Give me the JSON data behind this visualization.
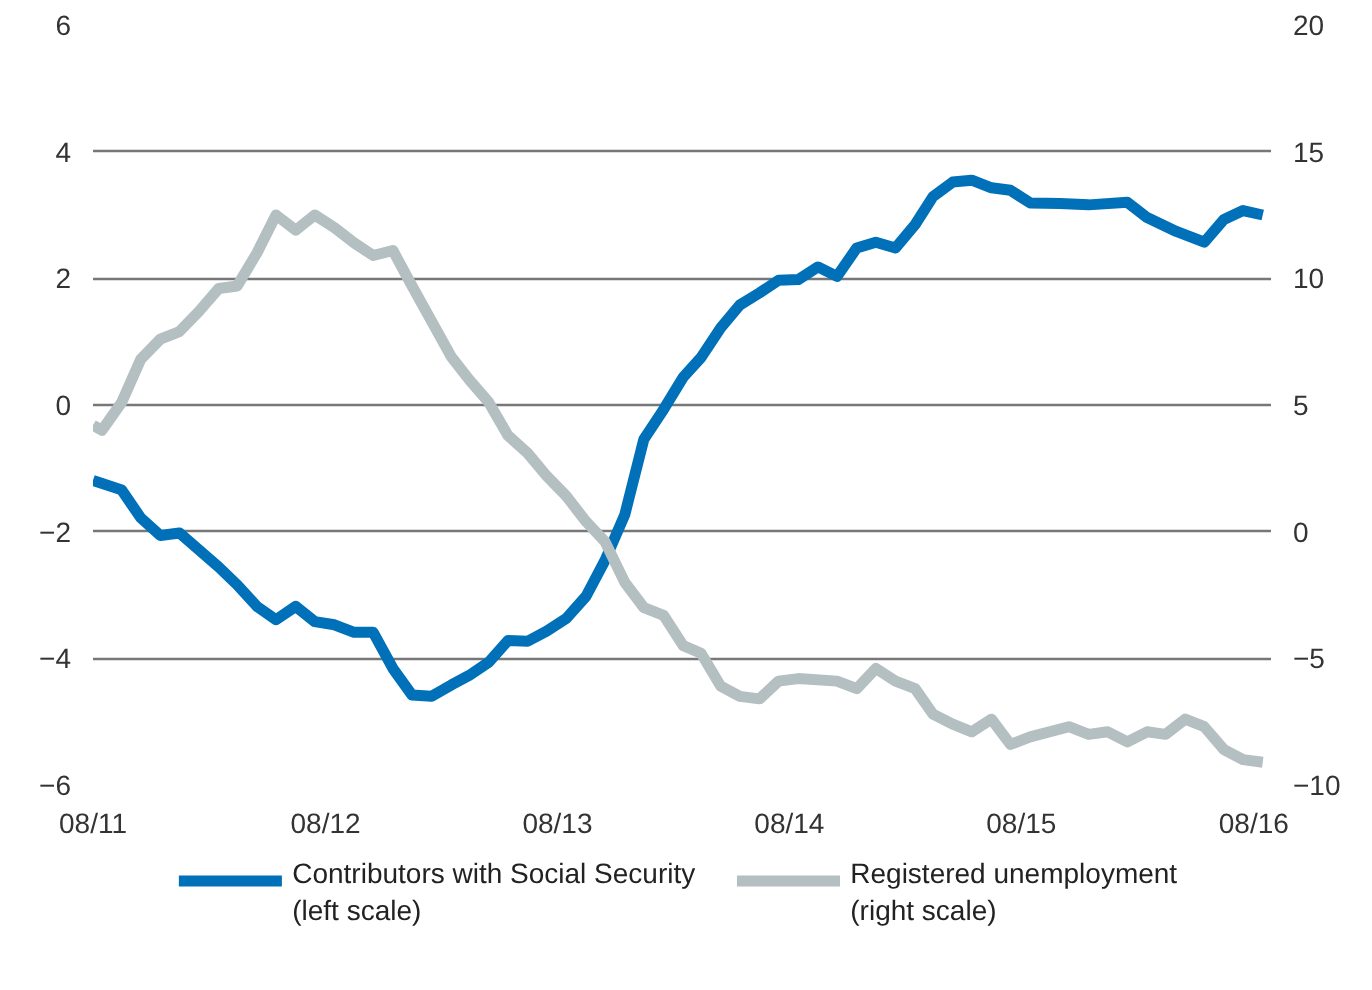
{
  "chart_data": {
    "type": "line",
    "legend": "bottom",
    "grid": "y",
    "line_style": "solid",
    "marker": "none",
    "xlim": [
      "2011-08-01",
      "2016-08-28"
    ],
    "xticks": [
      {
        "value": "2011-08-01",
        "label": "08/11"
      },
      {
        "value": "2012-08-01",
        "label": "08/12"
      },
      {
        "value": "2013-08-01",
        "label": "08/13"
      },
      {
        "value": "2014-08-01",
        "label": "08/14"
      },
      {
        "value": "2015-08-01",
        "label": "08/15"
      },
      {
        "value": "2016-08-01",
        "label": "08/16"
      }
    ],
    "ylim": [
      -6,
      6
    ],
    "yticks": [
      -6,
      -4,
      -2,
      0,
      2,
      4,
      6
    ],
    "y2lim": [
      -10,
      20
    ],
    "y2ticks": [
      -10,
      -5,
      0,
      5,
      10,
      15,
      20
    ],
    "series": [
      {
        "name": "Contributors with Social Security (left scale)",
        "color": "#0070b8",
        "axis": "y",
        "x": [
          "2011-08-01",
          "2011-09-15",
          "2011-10-15",
          "2011-11-15",
          "2011-12-15",
          "2012-02-15",
          "2012-03-15",
          "2012-04-15",
          "2012-05-15",
          "2012-06-15",
          "2012-07-15",
          "2012-08-15",
          "2012-09-15",
          "2012-10-15",
          "2012-11-15",
          "2012-12-15",
          "2013-01-15",
          "2013-02-15",
          "2013-03-15",
          "2013-04-15",
          "2013-05-15",
          "2013-06-15",
          "2013-07-15",
          "2013-08-15",
          "2013-09-15",
          "2013-10-15",
          "2013-11-15",
          "2013-12-15",
          "2014-01-15",
          "2014-02-15",
          "2014-03-15",
          "2014-04-15",
          "2014-05-15",
          "2014-06-15",
          "2014-07-15",
          "2014-08-15",
          "2014-09-15",
          "2014-10-15",
          "2014-11-15",
          "2014-12-15",
          "2015-01-15",
          "2015-02-15",
          "2015-03-15",
          "2015-04-15",
          "2015-05-15",
          "2015-06-15",
          "2015-07-15",
          "2015-08-15",
          "2015-10-01",
          "2015-11-15",
          "2016-01-15",
          "2016-02-15",
          "2016-04-01",
          "2016-05-15",
          "2016-06-15",
          "2016-07-15",
          "2016-08-15"
        ],
        "values": [
          -1.19,
          -1.34,
          -1.78,
          -2.06,
          -2.02,
          -2.56,
          -2.84,
          -3.18,
          -3.39,
          -3.18,
          -3.42,
          -3.47,
          -3.59,
          -3.59,
          -4.16,
          -4.58,
          -4.6,
          -4.42,
          -4.27,
          -4.06,
          -3.72,
          -3.73,
          -3.57,
          -3.37,
          -3.02,
          -2.45,
          -1.73,
          -0.54,
          -0.07,
          0.44,
          0.75,
          1.22,
          1.58,
          1.77,
          1.97,
          1.98,
          2.18,
          2.03,
          2.48,
          2.57,
          2.48,
          2.85,
          3.29,
          3.52,
          3.55,
          3.43,
          3.39,
          3.19,
          3.18,
          3.16,
          3.2,
          2.96,
          2.74,
          2.57,
          2.93,
          3.07,
          3.0
        ]
      },
      {
        "name": "Registered unemployment (right scale)",
        "color": "#b3bfc0",
        "axis": "y2",
        "x": [
          "2011-08-01",
          "2011-08-15",
          "2011-09-15",
          "2011-10-15",
          "2011-11-15",
          "2011-12-15",
          "2012-01-15",
          "2012-02-15",
          "2012-03-15",
          "2012-04-15",
          "2012-05-15",
          "2012-06-15",
          "2012-07-15",
          "2012-08-15",
          "2012-09-15",
          "2012-10-15",
          "2012-11-15",
          "2012-12-15",
          "2013-01-15",
          "2013-02-15",
          "2013-03-15",
          "2013-04-15",
          "2013-05-15",
          "2013-06-15",
          "2013-07-15",
          "2013-08-15",
          "2013-09-15",
          "2013-10-15",
          "2013-11-15",
          "2013-12-15",
          "2014-01-15",
          "2014-02-15",
          "2014-03-15",
          "2014-04-15",
          "2014-05-15",
          "2014-06-15",
          "2014-07-15",
          "2014-08-15",
          "2014-10-15",
          "2014-11-15",
          "2014-12-15",
          "2015-01-15",
          "2015-02-15",
          "2015-03-15",
          "2015-04-15",
          "2015-05-15",
          "2015-06-15",
          "2015-07-15",
          "2015-08-15",
          "2015-10-15",
          "2015-11-15",
          "2015-12-15",
          "2016-01-15",
          "2016-02-15",
          "2016-03-15",
          "2016-04-15",
          "2016-05-15",
          "2016-06-15",
          "2016-07-15",
          "2016-08-15"
        ],
        "values": [
          4.2,
          4.0,
          5.1,
          6.8,
          7.6,
          7.9,
          8.7,
          9.6,
          9.7,
          11.0,
          12.5,
          11.9,
          12.5,
          12.0,
          11.4,
          10.9,
          11.1,
          9.7,
          8.3,
          6.9,
          6.0,
          5.1,
          3.8,
          3.1,
          2.2,
          1.4,
          0.4,
          -0.4,
          -2.0,
          -3.0,
          -3.3,
          -4.5,
          -4.8,
          -6.1,
          -6.5,
          -6.6,
          -5.9,
          -5.8,
          -5.9,
          -6.2,
          -5.4,
          -5.9,
          -6.2,
          -7.2,
          -7.6,
          -7.9,
          -7.4,
          -8.4,
          -8.1,
          -7.7,
          -8.0,
          -7.9,
          -8.3,
          -7.9,
          -8.0,
          -7.4,
          -7.7,
          -8.6,
          -9.0,
          -9.1
        ]
      }
    ]
  }
}
